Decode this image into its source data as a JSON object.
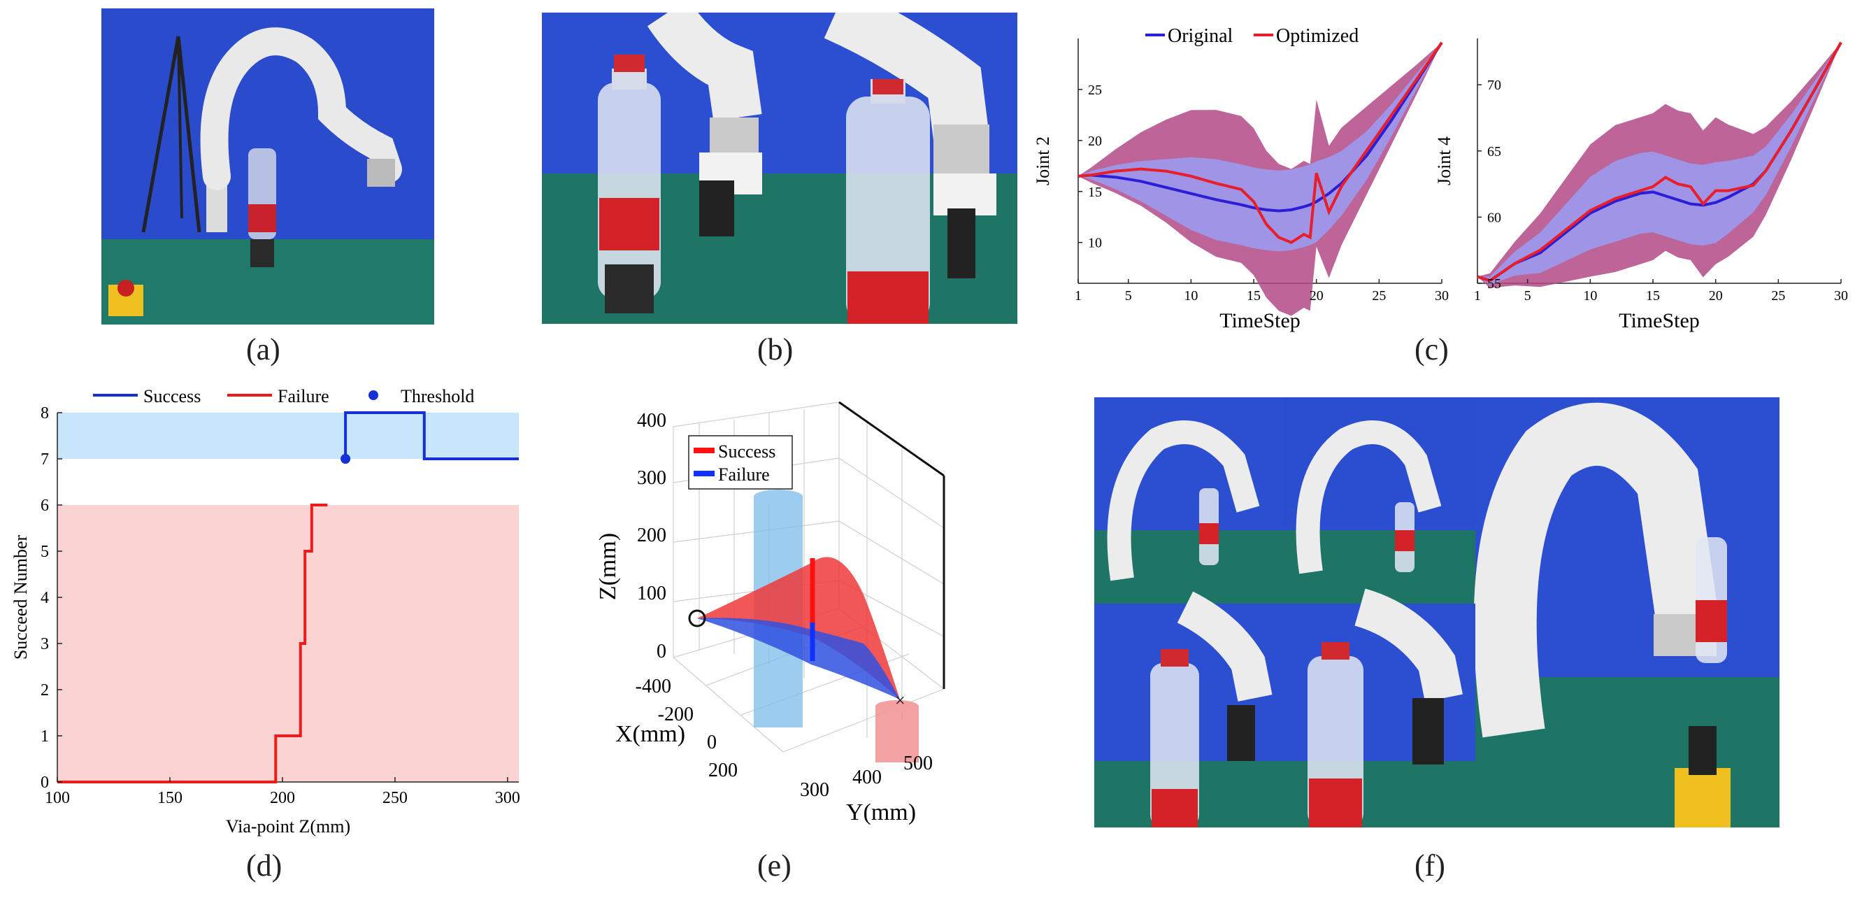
{
  "captions": [
    "(a)",
    "(b)",
    "(c)",
    "(d)",
    "(e)",
    "(f)"
  ],
  "panel_c": {
    "legend": [
      "Original",
      "Optimized"
    ],
    "colors": {
      "original": "#2b1ed6",
      "optimized": "#e81e2a",
      "band_red": "#b24a86",
      "band_blue": "#9a9cf2"
    },
    "left": {
      "ylabel": "Joint 2",
      "xlabel": "TimeStep",
      "yticks": [
        "10",
        "15",
        "20",
        "25"
      ],
      "xticks": [
        "1",
        "5",
        "10",
        "15",
        "20",
        "25",
        "30"
      ]
    },
    "right": {
      "ylabel": "Joint 4",
      "xlabel": "TimeStep",
      "yticks": [
        "55",
        "60",
        "65",
        "70"
      ],
      "xticks": [
        "1",
        "5",
        "10",
        "15",
        "20",
        "25",
        "30"
      ]
    }
  },
  "panel_d": {
    "legend": [
      "Success",
      "Failure",
      "Threshold"
    ],
    "xlabel": "Via-point Z(mm)",
    "ylabel": "Succeed Number",
    "xticks": [
      "100",
      "150",
      "200",
      "250",
      "300"
    ],
    "yticks": [
      "0",
      "1",
      "2",
      "3",
      "4",
      "5",
      "6",
      "7",
      "8"
    ],
    "colors": {
      "success": "#1530d6",
      "failure": "#ea1c1c",
      "band_success": "#c7e6fb",
      "band_failure": "#fbd3d3"
    }
  },
  "panel_e": {
    "legend": [
      "Success",
      "Failure"
    ],
    "zlabel": "Z(mm)",
    "xlabel": "X(mm)",
    "ylabel": "Y(mm)",
    "zticks": [
      "400",
      "300",
      "200",
      "100",
      "0"
    ],
    "xticks": [
      "-400",
      "-200",
      "0",
      "200"
    ],
    "yticks": [
      "300",
      "400",
      "500"
    ]
  },
  "chart_data": [
    {
      "type": "line",
      "panel": "c-left",
      "xlabel": "TimeStep",
      "ylabel": "Joint 2",
      "xlim": [
        1,
        30
      ],
      "ylim": [
        6,
        30
      ],
      "x": [
        1,
        2,
        4,
        6,
        8,
        10,
        12,
        14,
        15,
        16,
        17,
        18,
        19,
        19.5,
        20,
        21,
        22,
        24,
        26,
        28,
        30
      ],
      "series": [
        {
          "name": "Original",
          "values": [
            16.5,
            16.6,
            16.4,
            16.0,
            15.4,
            14.8,
            14.2,
            13.7,
            13.4,
            13.2,
            13.1,
            13.2,
            13.5,
            13.7,
            14.0,
            14.8,
            15.8,
            18.5,
            22.0,
            25.8,
            29.6
          ]
        },
        {
          "name": "Optimized",
          "values": [
            16.5,
            16.6,
            17.0,
            17.2,
            17.0,
            16.5,
            15.8,
            15.2,
            14.0,
            11.8,
            10.5,
            10.0,
            10.8,
            10.5,
            16.8,
            13.0,
            15.5,
            19.0,
            22.5,
            26.0,
            29.6
          ]
        }
      ]
    },
    {
      "type": "line",
      "panel": "c-right",
      "xlabel": "TimeStep",
      "ylabel": "Joint 4",
      "xlim": [
        1,
        30
      ],
      "ylim": [
        55,
        73.5
      ],
      "x": [
        1,
        2,
        4,
        6,
        8,
        10,
        12,
        14,
        15,
        16,
        17,
        18,
        19,
        20,
        21,
        22,
        23,
        24,
        26,
        28,
        30
      ],
      "series": [
        {
          "name": "Original",
          "values": [
            55.5,
            55.2,
            56.5,
            57.3,
            58.8,
            60.3,
            61.2,
            61.8,
            61.9,
            61.6,
            61.3,
            61.0,
            60.9,
            61.1,
            61.5,
            62.0,
            62.5,
            63.5,
            66.5,
            69.8,
            73.2
          ]
        },
        {
          "name": "Optimized",
          "values": [
            55.5,
            55.2,
            56.5,
            57.5,
            59.0,
            60.5,
            61.4,
            62.0,
            62.3,
            63.0,
            62.5,
            62.3,
            61.0,
            62.0,
            62.0,
            62.2,
            62.4,
            63.5,
            66.5,
            69.8,
            73.2
          ]
        }
      ]
    },
    {
      "type": "line",
      "panel": "d",
      "xlabel": "Via-point Z(mm)",
      "ylabel": "Succeed Number",
      "xlim": [
        100,
        305
      ],
      "ylim": [
        0,
        8
      ],
      "series": [
        {
          "name": "Failure",
          "x": [
            100,
            197,
            197,
            208,
            208,
            210,
            210,
            213,
            213,
            216,
            216,
            220
          ],
          "values": [
            0,
            0,
            1,
            1,
            3,
            3,
            5,
            5,
            6,
            6,
            6,
            6
          ]
        },
        {
          "name": "Success",
          "x": [
            228,
            228,
            263,
            263,
            305
          ],
          "values": [
            7,
            8,
            8,
            7,
            7
          ]
        },
        {
          "name": "Threshold",
          "x": [
            228
          ],
          "values": [
            7
          ]
        }
      ]
    }
  ]
}
